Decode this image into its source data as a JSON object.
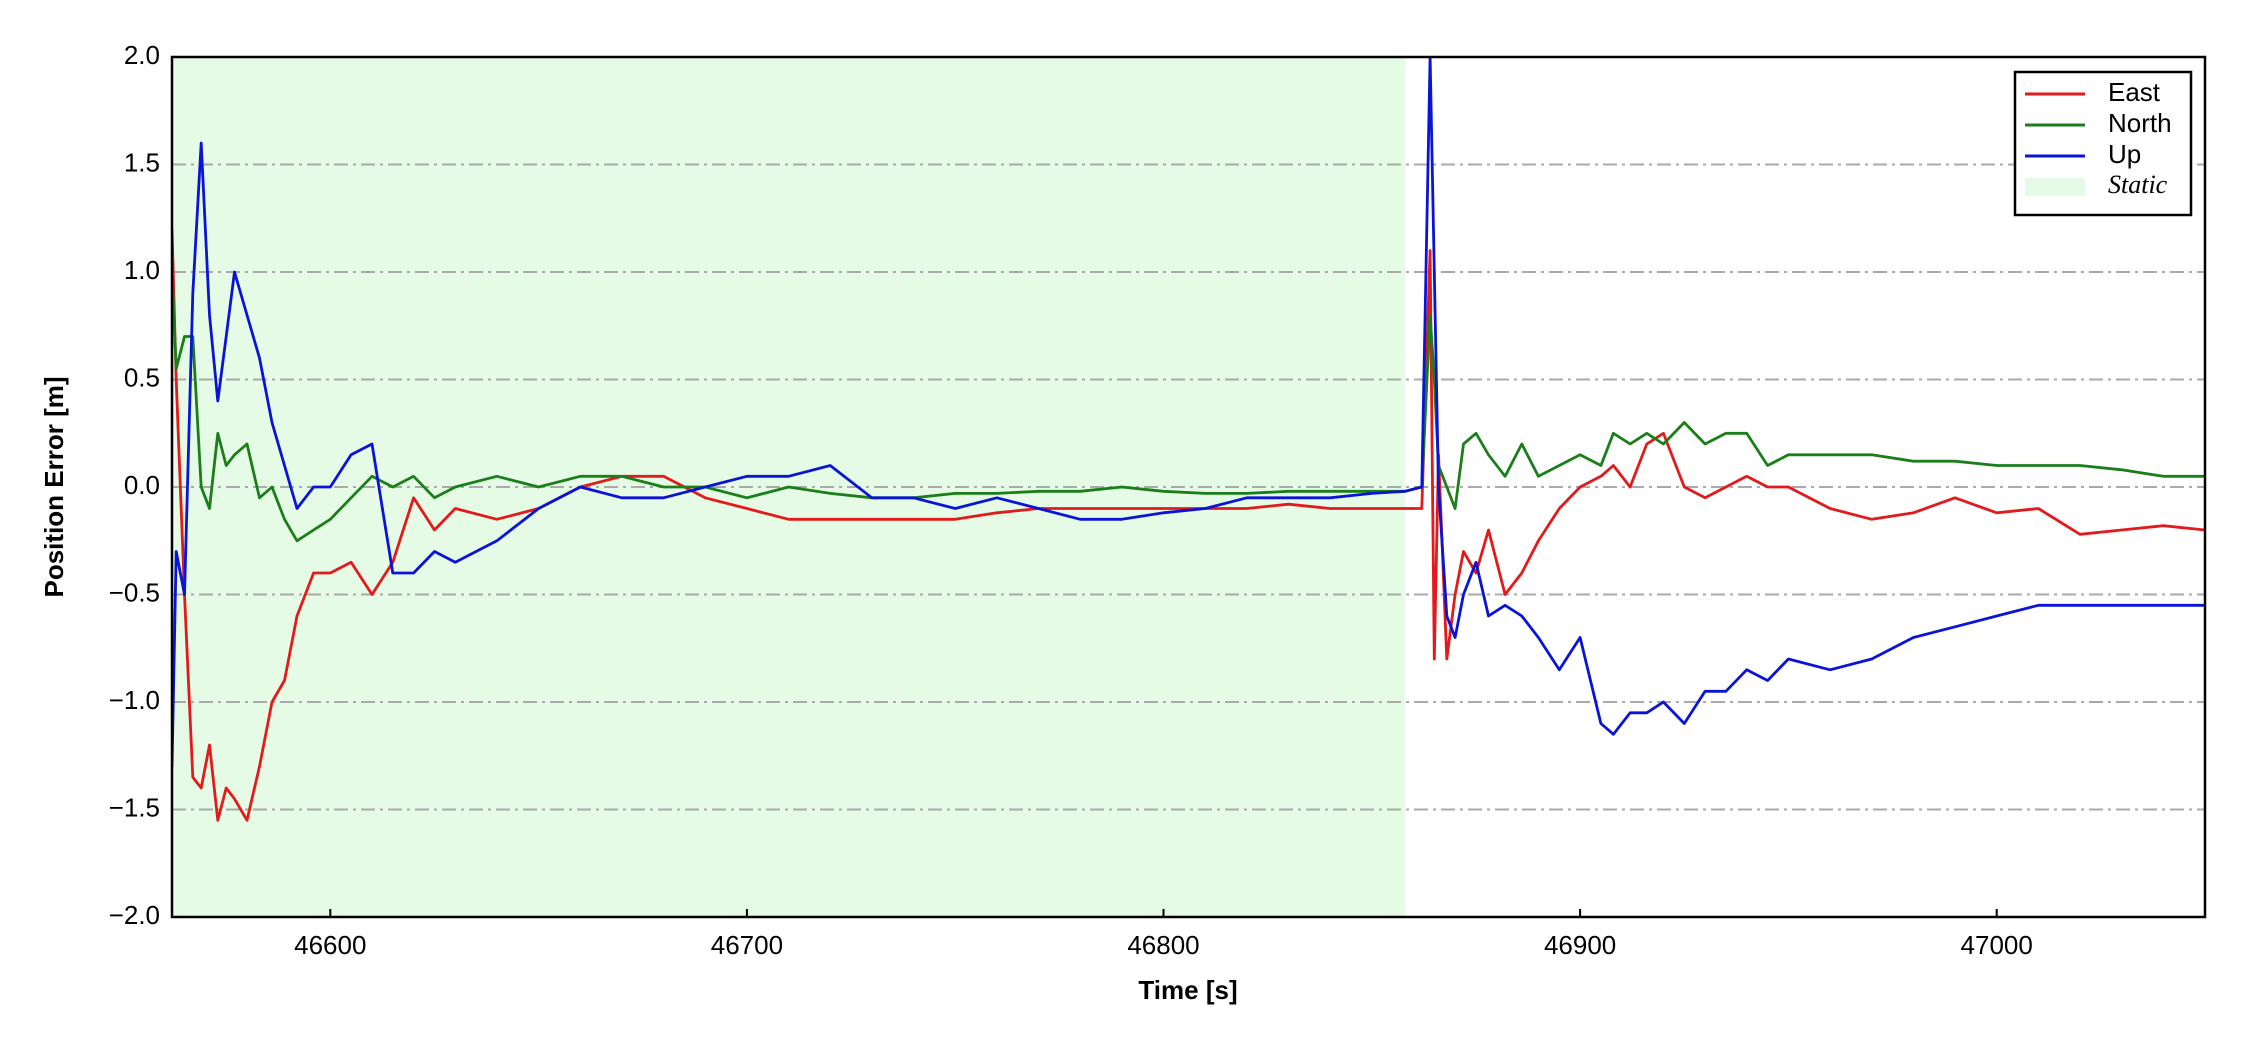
{
  "chart_data": {
    "type": "line",
    "xlabel": "Time [s]",
    "ylabel": "Position Error [m]",
    "xlim": [
      46562,
      47050
    ],
    "ylim": [
      -2,
      2
    ],
    "xticks": [
      46600,
      46700,
      46800,
      46900,
      47000
    ],
    "yticks": [
      {
        "value": -2,
        "label": "−2.0"
      },
      {
        "value": -1.5,
        "label": "−1.5"
      },
      {
        "value": -1,
        "label": "−1.0"
      },
      {
        "value": -0.5,
        "label": "−0.5"
      },
      {
        "value": 0,
        "label": "0.0"
      },
      {
        "value": 0.5,
        "label": "0.5"
      },
      {
        "value": 1,
        "label": "1.0"
      },
      {
        "value": 1.5,
        "label": "1.5"
      },
      {
        "value": 2,
        "label": "2.0"
      }
    ],
    "grid": true,
    "legend": "upper right",
    "span": {
      "name": "Static",
      "color": "#e6fbe6",
      "x": [
        46562,
        46858
      ]
    },
    "x": [
      46562,
      46563,
      46565,
      46567,
      46569,
      46571,
      46573,
      46575,
      46577,
      46580,
      46583,
      46586,
      46589,
      46592,
      46596,
      46600,
      46605,
      46610,
      46615,
      46620,
      46625,
      46630,
      46640,
      46650,
      46660,
      46670,
      46680,
      46690,
      46700,
      46710,
      46720,
      46730,
      46740,
      46750,
      46760,
      46770,
      46780,
      46790,
      46800,
      46810,
      46820,
      46830,
      46840,
      46850,
      46858,
      46862,
      46864,
      46865,
      46866,
      46868,
      46870,
      46872,
      46875,
      46878,
      46882,
      46886,
      46890,
      46895,
      46900,
      46905,
      46908,
      46912,
      46916,
      46920,
      46925,
      46930,
      46935,
      46940,
      46945,
      46950,
      46960,
      46970,
      46980,
      46990,
      47000,
      47010,
      47020,
      47030,
      47040,
      47050
    ],
    "series": [
      {
        "name": "East",
        "color": "#e31a1c",
        "values": [
          1.2,
          0.5,
          -0.5,
          -1.35,
          -1.4,
          -1.2,
          -1.55,
          -1.4,
          -1.45,
          -1.55,
          -1.3,
          -1.0,
          -0.9,
          -0.6,
          -0.4,
          -0.4,
          -0.35,
          -0.5,
          -0.35,
          -0.05,
          -0.2,
          -0.1,
          -0.15,
          -0.1,
          0.0,
          0.05,
          0.05,
          -0.05,
          -0.1,
          -0.15,
          -0.15,
          -0.15,
          -0.15,
          -0.15,
          -0.12,
          -0.1,
          -0.1,
          -0.1,
          -0.1,
          -0.1,
          -0.1,
          -0.08,
          -0.1,
          -0.1,
          -0.1,
          -0.1,
          1.1,
          -0.8,
          0.15,
          -0.8,
          -0.5,
          -0.3,
          -0.4,
          -0.2,
          -0.5,
          -0.4,
          -0.25,
          -0.1,
          0.0,
          0.05,
          0.1,
          0.0,
          0.2,
          0.25,
          0.0,
          -0.05,
          0.0,
          0.05,
          0.0,
          0.0,
          -0.1,
          -0.15,
          -0.12,
          -0.05,
          -0.12,
          -0.1,
          -0.22,
          -0.2,
          -0.18,
          -0.2
        ]
      },
      {
        "name": "North",
        "color": "#1a7f1a",
        "values": [
          1.0,
          0.55,
          0.7,
          0.7,
          0.0,
          -0.1,
          0.25,
          0.1,
          0.15,
          0.2,
          -0.05,
          0.0,
          -0.15,
          -0.25,
          -0.2,
          -0.15,
          -0.05,
          0.05,
          0.0,
          0.05,
          -0.05,
          0.0,
          0.05,
          0.0,
          0.05,
          0.05,
          0.0,
          0.0,
          -0.05,
          0.0,
          -0.03,
          -0.05,
          -0.05,
          -0.03,
          -0.03,
          -0.02,
          -0.02,
          0.0,
          -0.02,
          -0.03,
          -0.03,
          -0.02,
          -0.02,
          -0.02,
          -0.02,
          0.0,
          0.8,
          0.5,
          0.1,
          0.0,
          -0.1,
          0.2,
          0.25,
          0.15,
          0.05,
          0.2,
          0.05,
          0.1,
          0.15,
          0.1,
          0.25,
          0.2,
          0.25,
          0.2,
          0.3,
          0.2,
          0.25,
          0.25,
          0.1,
          0.15,
          0.15,
          0.15,
          0.12,
          0.12,
          0.1,
          0.1,
          0.1,
          0.08,
          0.05,
          0.05
        ]
      },
      {
        "name": "Up",
        "color": "#0a14d8",
        "values": [
          -1.3,
          -0.3,
          -0.5,
          0.9,
          1.6,
          0.8,
          0.4,
          0.7,
          1.0,
          0.8,
          0.6,
          0.3,
          0.1,
          -0.1,
          0.0,
          0.0,
          0.15,
          0.2,
          -0.4,
          -0.4,
          -0.3,
          -0.35,
          -0.25,
          -0.1,
          0.0,
          -0.05,
          -0.05,
          0.0,
          0.05,
          0.05,
          0.1,
          -0.05,
          -0.05,
          -0.1,
          -0.05,
          -0.1,
          -0.15,
          -0.15,
          -0.12,
          -0.1,
          -0.05,
          -0.05,
          -0.05,
          -0.03,
          -0.02,
          0.0,
          2.0,
          1.0,
          0.0,
          -0.6,
          -0.7,
          -0.5,
          -0.35,
          -0.6,
          -0.55,
          -0.6,
          -0.7,
          -0.85,
          -0.7,
          -1.1,
          -1.15,
          -1.05,
          -1.05,
          -1.0,
          -1.1,
          -0.95,
          -0.95,
          -0.85,
          -0.9,
          -0.8,
          -0.85,
          -0.8,
          -0.7,
          -0.65,
          -0.6,
          -0.55,
          -0.55,
          -0.55,
          -0.55,
          -0.55
        ]
      }
    ]
  }
}
